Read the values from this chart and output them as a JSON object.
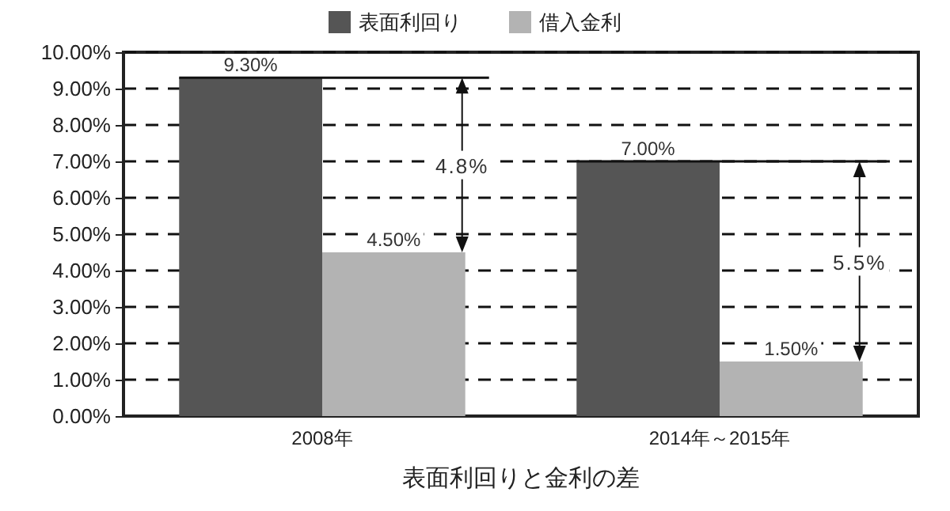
{
  "chart_data": {
    "type": "bar",
    "xlabel": "表面利回りと金利の差",
    "categories": [
      "2008年",
      "2014年～2015年"
    ],
    "series": [
      {
        "name": "表面利回り",
        "color": "#555555",
        "values": [
          9.3,
          7.0
        ]
      },
      {
        "name": "借入金利",
        "color": "#b3b3b3",
        "values": [
          4.5,
          1.5
        ]
      }
    ],
    "value_labels": [
      [
        "9.30%",
        "7.00%"
      ],
      [
        "4.50%",
        "1.50%"
      ]
    ],
    "ylim": [
      0,
      10
    ],
    "yticks": [
      {
        "value": 0,
        "label": "0.00%"
      },
      {
        "value": 1,
        "label": "1.00%"
      },
      {
        "value": 2,
        "label": "2.00%"
      },
      {
        "value": 3,
        "label": "3.00%"
      },
      {
        "value": 4,
        "label": "4.00%"
      },
      {
        "value": 5,
        "label": "5.00%"
      },
      {
        "value": 6,
        "label": "6.00%"
      },
      {
        "value": 7,
        "label": "7.00%"
      },
      {
        "value": 8,
        "label": "8.00%"
      },
      {
        "value": 9,
        "label": "9.00%"
      },
      {
        "value": 10,
        "label": "10.00%"
      }
    ],
    "annotations": [
      "4.8%",
      "5.5%"
    ],
    "grid": "y",
    "legend": "top"
  }
}
